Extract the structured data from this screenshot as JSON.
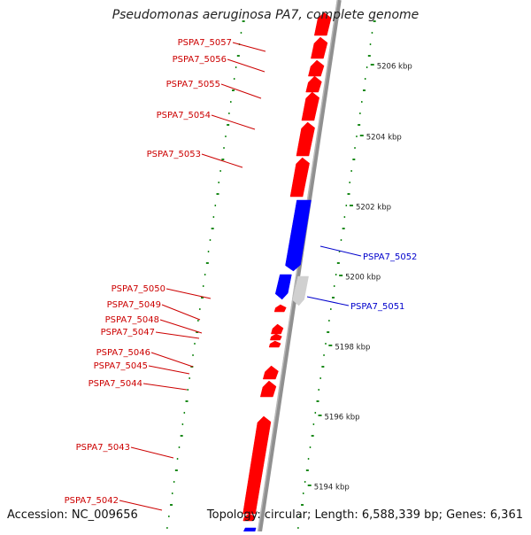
{
  "title": "Pseudomonas aeruginosa PA7, complete genome",
  "accession_text": "Accession: NC_009656",
  "topology_text": "Topology: circular; Length: 6,588,339 bp; Genes: 6,361",
  "colors": {
    "forward_gene": "#ff0000",
    "reverse_gene": "#0000ff",
    "other_feature": "#d0d0d0",
    "backbone": "#909090",
    "tick": "#1a8a1a",
    "forward_label": "#cc0000",
    "reverse_label": "#0000cc"
  },
  "axis": {
    "unit": "kbp",
    "major_ticks": [
      {
        "kbp": 5206,
        "label": "5206 kbp"
      },
      {
        "kbp": 5204,
        "label": "5204 kbp"
      },
      {
        "kbp": 5202,
        "label": "5202 kbp"
      },
      {
        "kbp": 5200,
        "label": "5200 kbp"
      },
      {
        "kbp": 5198,
        "label": "5198 kbp"
      },
      {
        "kbp": 5196,
        "label": "5196 kbp"
      },
      {
        "kbp": 5194,
        "label": "5194 kbp"
      }
    ]
  },
  "forward_genes": [
    {
      "label": "PSPA7_5057"
    },
    {
      "label": "PSPA7_5056"
    },
    {
      "label": "PSPA7_5055"
    },
    {
      "label": "PSPA7_5054"
    },
    {
      "label": "PSPA7_5053"
    },
    {
      "label": "PSPA7_5050"
    },
    {
      "label": "PSPA7_5049"
    },
    {
      "label": "PSPA7_5048"
    },
    {
      "label": "PSPA7_5047"
    },
    {
      "label": "PSPA7_5046"
    },
    {
      "label": "PSPA7_5045"
    },
    {
      "label": "PSPA7_5044"
    },
    {
      "label": "PSPA7_5043"
    },
    {
      "label": "PSPA7_5042"
    }
  ],
  "reverse_genes": [
    {
      "label": "PSPA7_5052"
    },
    {
      "label": "PSPA7_5051"
    }
  ]
}
